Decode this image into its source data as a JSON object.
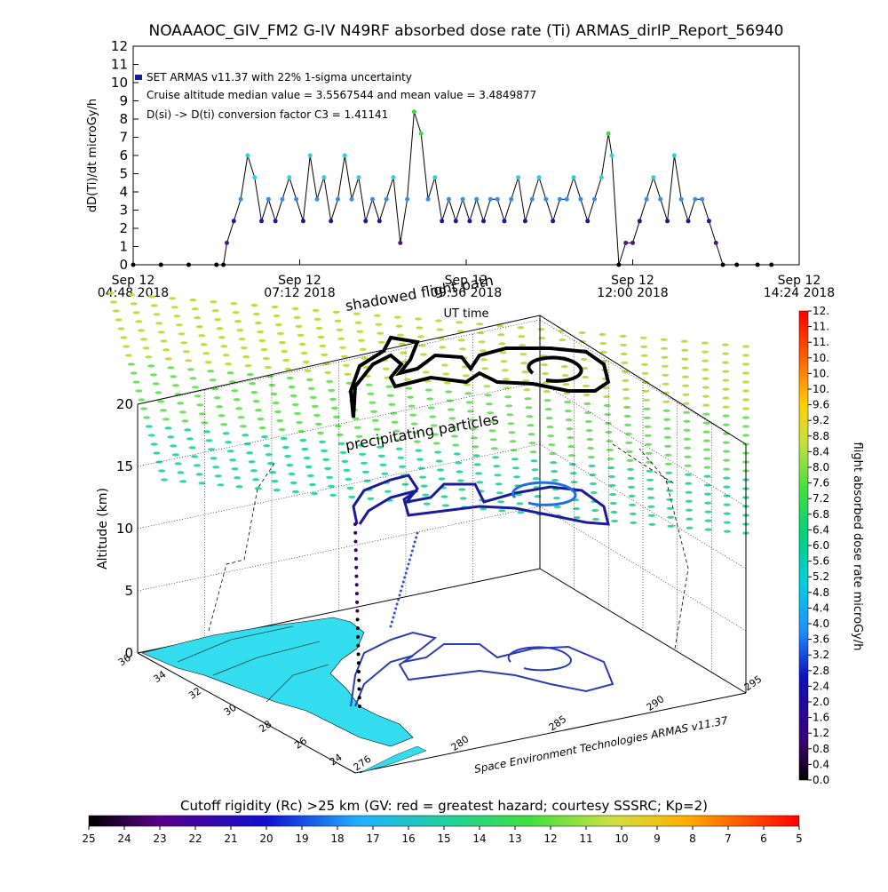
{
  "title": "NOAAAOC_GIV_FM2 G-IV   N49RF  absorbed dose rate (Ti) ARMAS_dirIP_Report_56940",
  "colors": {
    "low_dose": "#1a1a9a",
    "mid_dose": "#3a8ee8",
    "high_dose": "#2fd0d8",
    "peak_dose": "#3fd84a",
    "line": "#000000",
    "land": "#33ddee",
    "coast": "#000000"
  },
  "chart_data": [
    {
      "type": "line",
      "title": "",
      "ylabel": "dD(Ti)/dt microGy/h",
      "xlabel": "UT time",
      "ylim": [
        0,
        12
      ],
      "yticks": [
        "0",
        "1",
        "2",
        "3",
        "4",
        "5",
        "6",
        "7",
        "8",
        "9",
        "10",
        "11",
        "12"
      ],
      "xticks": [
        {
          "line1": "Sep 12",
          "line2": "04:48 2018"
        },
        {
          "line1": "Sep 12",
          "line2": "07:12 2018"
        },
        {
          "line1": "Sep 12",
          "line2": "09:36 2018"
        },
        {
          "line1": "Sep 12",
          "line2": "12:00 2018"
        },
        {
          "line1": "Sep 12",
          "line2": "14:24 2018"
        }
      ],
      "xlim_hours": [
        4.8,
        14.4
      ],
      "annotations": [
        "SET ARMAS v11.37 with 22% 1-sigma uncertainty",
        "Cruise altitude median value = 3.5567544 and mean value = 3.4849877",
        "D(si) -> D(ti) conversion factor C3 = 1.41141"
      ],
      "series": [
        {
          "x": [
            4.8,
            5.2,
            5.6,
            6.0,
            6.1,
            6.15,
            6.25,
            6.35,
            6.45,
            6.55,
            6.65,
            6.75,
            6.85,
            6.95,
            7.05,
            7.15,
            7.25,
            7.35,
            7.45,
            7.55,
            7.65,
            7.75,
            7.85,
            7.95,
            8.05,
            8.15,
            8.25,
            8.35,
            8.45,
            8.55,
            8.65,
            8.75,
            8.85,
            8.95,
            9.05,
            9.15,
            9.25,
            9.35,
            9.45,
            9.55,
            9.65,
            9.75,
            9.85,
            9.95,
            10.05,
            10.15,
            10.25,
            10.35,
            10.45,
            10.55,
            10.65,
            10.75,
            10.85,
            10.95,
            11.05,
            11.15,
            11.25,
            11.35,
            11.45,
            11.55,
            11.65,
            11.7,
            11.8,
            11.9,
            12.0,
            12.1,
            12.2,
            12.3,
            12.4,
            12.5,
            12.6,
            12.7,
            12.8,
            12.9,
            13.0,
            13.1,
            13.2,
            13.3,
            13.5,
            13.8,
            14.0
          ],
          "y": [
            0,
            0,
            0,
            0,
            0,
            1.2,
            2.4,
            3.6,
            6.0,
            4.8,
            2.4,
            3.6,
            2.4,
            3.6,
            4.8,
            3.6,
            2.4,
            6.0,
            3.6,
            4.8,
            2.4,
            3.6,
            6.0,
            3.6,
            4.8,
            2.4,
            3.6,
            2.4,
            3.6,
            4.8,
            1.2,
            3.6,
            8.4,
            7.2,
            3.6,
            4.8,
            2.4,
            3.6,
            2.4,
            3.6,
            2.4,
            3.6,
            2.4,
            3.6,
            3.6,
            2.4,
            3.6,
            4.8,
            2.4,
            3.6,
            4.8,
            3.6,
            2.4,
            3.6,
            3.6,
            4.8,
            3.6,
            2.4,
            3.6,
            4.8,
            7.2,
            6.0,
            0,
            1.2,
            1.2,
            2.4,
            3.6,
            4.8,
            3.6,
            2.4,
            6.0,
            3.6,
            2.4,
            3.6,
            3.6,
            2.4,
            1.2,
            0,
            0,
            0,
            0
          ]
        }
      ]
    },
    {
      "type": "scatter",
      "title": "",
      "zlabel": "Altitude (km)",
      "zticks": [
        "0",
        "5",
        "10",
        "15",
        "20"
      ],
      "zlim": [
        0,
        20
      ],
      "lat_ticks": [
        "24",
        "26",
        "28",
        "30",
        "32",
        "34",
        "36"
      ],
      "lon_ticks": [
        "276",
        "280",
        "285",
        "290",
        "295"
      ],
      "shadowed_label": "shadowed flight path",
      "particles_label": "precipitating particles",
      "credit": "Space Environment Technologies ARMAS v11.37"
    },
    {
      "type": "heatmap",
      "colorbar_right_label": "flight absorbed dose rate microGy/h",
      "colorbar_right_ticks": [
        "0.0",
        "0.4",
        "0.8",
        "1.2",
        "1.6",
        "2.0",
        "2.4",
        "2.8",
        "3.2",
        "3.6",
        "4.0",
        "4.4",
        "4.8",
        "5.2",
        "5.6",
        "6.0",
        "6.4",
        "6.8",
        "7.2",
        "7.6",
        "8.0",
        "8.4",
        "8.8",
        "9.2",
        "9.6",
        "10.",
        "10.",
        "10.",
        "11.",
        "11.",
        "12."
      ],
      "colorbar_bottom_label": "Cutoff rigidity (Rc) >25 km (GV: red = greatest hazard; courtesy SSSRC; Kp=2)",
      "colorbar_bottom_ticks": [
        "25",
        "24",
        "23",
        "22",
        "21",
        "20",
        "19",
        "18",
        "17",
        "16",
        "15",
        "14",
        "13",
        "12",
        "11",
        "10",
        "9",
        "8",
        "7",
        "6",
        "5"
      ]
    }
  ]
}
